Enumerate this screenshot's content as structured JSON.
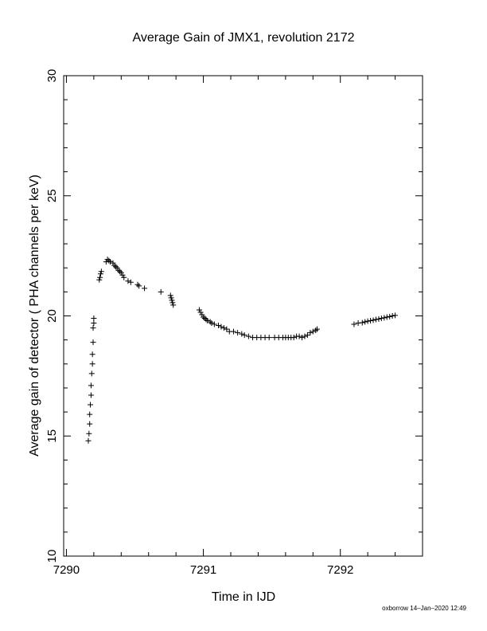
{
  "chart_data": {
    "type": "scatter",
    "title": "Average Gain of JMX1, revolution 2172",
    "xlabel": "Time in IJD",
    "ylabel": "Average gain of detector ( PHA channels per keV)",
    "xlim": [
      7289.98,
      7292.6
    ],
    "ylim": [
      10,
      30
    ],
    "x_ticks": [
      7290,
      7291,
      7292
    ],
    "y_ticks": [
      10,
      15,
      20,
      25,
      30
    ],
    "x_tick_labels": [
      "7290",
      "7291",
      "7292"
    ],
    "y_tick_labels": [
      "10",
      "15",
      "20",
      "25",
      "30"
    ],
    "marker": "plus",
    "grid": false,
    "legend": "none",
    "color": "#000000",
    "points": [
      [
        7290.16,
        14.8
      ],
      [
        7290.165,
        15.1
      ],
      [
        7290.17,
        15.5
      ],
      [
        7290.17,
        15.9
      ],
      [
        7290.175,
        16.3
      ],
      [
        7290.18,
        16.7
      ],
      [
        7290.18,
        17.1
      ],
      [
        7290.185,
        17.6
      ],
      [
        7290.19,
        18.0
      ],
      [
        7290.19,
        18.4
      ],
      [
        7290.195,
        18.9
      ],
      [
        7290.195,
        19.5
      ],
      [
        7290.2,
        19.7
      ],
      [
        7290.2,
        19.9
      ],
      [
        7290.24,
        21.5
      ],
      [
        7290.245,
        21.6
      ],
      [
        7290.25,
        21.75
      ],
      [
        7290.255,
        21.85
      ],
      [
        7290.29,
        22.25
      ],
      [
        7290.3,
        22.35
      ],
      [
        7290.31,
        22.3
      ],
      [
        7290.32,
        22.25
      ],
      [
        7290.34,
        22.2
      ],
      [
        7290.35,
        22.1
      ],
      [
        7290.36,
        22.05
      ],
      [
        7290.37,
        22.0
      ],
      [
        7290.38,
        21.9
      ],
      [
        7290.39,
        21.85
      ],
      [
        7290.4,
        21.8
      ],
      [
        7290.41,
        21.7
      ],
      [
        7290.42,
        21.6
      ],
      [
        7290.45,
        21.45
      ],
      [
        7290.47,
        21.4
      ],
      [
        7290.52,
        21.3
      ],
      [
        7290.53,
        21.25
      ],
      [
        7290.57,
        21.15
      ],
      [
        7290.69,
        21.0
      ],
      [
        7290.76,
        20.85
      ],
      [
        7290.765,
        20.75
      ],
      [
        7290.77,
        20.65
      ],
      [
        7290.775,
        20.55
      ],
      [
        7290.78,
        20.45
      ],
      [
        7290.97,
        20.25
      ],
      [
        7290.98,
        20.15
      ],
      [
        7290.99,
        20.05
      ],
      [
        7291.0,
        19.95
      ],
      [
        7291.01,
        19.9
      ],
      [
        7291.02,
        19.85
      ],
      [
        7291.03,
        19.8
      ],
      [
        7291.05,
        19.75
      ],
      [
        7291.06,
        19.7
      ],
      [
        7291.08,
        19.65
      ],
      [
        7291.11,
        19.6
      ],
      [
        7291.13,
        19.55
      ],
      [
        7291.15,
        19.5
      ],
      [
        7291.17,
        19.45
      ],
      [
        7291.19,
        19.35
      ],
      [
        7291.22,
        19.35
      ],
      [
        7291.25,
        19.3
      ],
      [
        7291.28,
        19.25
      ],
      [
        7291.3,
        19.2
      ],
      [
        7291.33,
        19.15
      ],
      [
        7291.36,
        19.1
      ],
      [
        7291.39,
        19.1
      ],
      [
        7291.42,
        19.1
      ],
      [
        7291.45,
        19.1
      ],
      [
        7291.48,
        19.1
      ],
      [
        7291.52,
        19.1
      ],
      [
        7291.55,
        19.1
      ],
      [
        7291.58,
        19.1
      ],
      [
        7291.6,
        19.1
      ],
      [
        7291.62,
        19.1
      ],
      [
        7291.64,
        19.1
      ],
      [
        7291.66,
        19.1
      ],
      [
        7291.68,
        19.15
      ],
      [
        7291.7,
        19.15
      ],
      [
        7291.72,
        19.1
      ],
      [
        7291.74,
        19.15
      ],
      [
        7291.76,
        19.2
      ],
      [
        7291.78,
        19.3
      ],
      [
        7291.8,
        19.35
      ],
      [
        7291.82,
        19.4
      ],
      [
        7291.83,
        19.45
      ],
      [
        7292.1,
        19.65
      ],
      [
        7292.13,
        19.7
      ],
      [
        7292.16,
        19.72
      ],
      [
        7292.18,
        19.75
      ],
      [
        7292.2,
        19.78
      ],
      [
        7292.22,
        19.8
      ],
      [
        7292.24,
        19.82
      ],
      [
        7292.26,
        19.85
      ],
      [
        7292.28,
        19.87
      ],
      [
        7292.3,
        19.9
      ],
      [
        7292.32,
        19.92
      ],
      [
        7292.34,
        19.95
      ],
      [
        7292.36,
        19.97
      ],
      [
        7292.38,
        20.0
      ],
      [
        7292.4,
        20.02
      ]
    ]
  },
  "footer": "oxborrow 14–Jan–2020 12:49"
}
